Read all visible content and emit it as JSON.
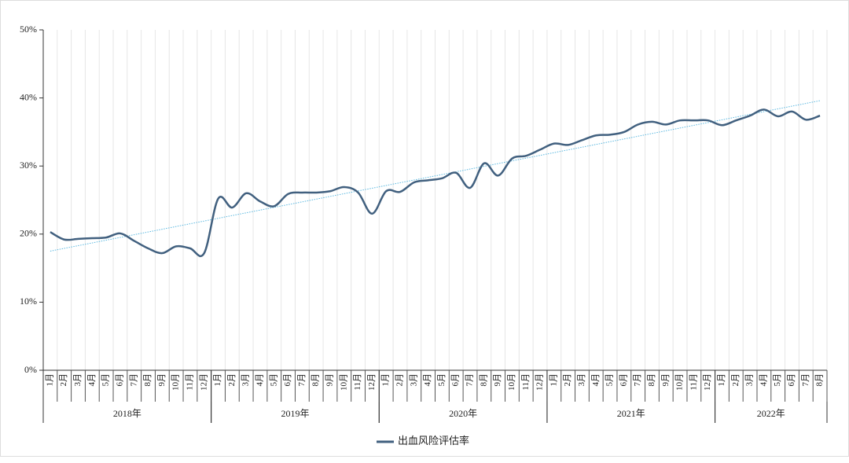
{
  "chart_data": {
    "type": "line",
    "category_groups": [
      {
        "label": "2018年",
        "categories": [
          "1月",
          "2月",
          "3月",
          "4月",
          "5月",
          "6月",
          "7月",
          "8月",
          "9月",
          "10月",
          "11月",
          "12月"
        ]
      },
      {
        "label": "2019年",
        "categories": [
          "1月",
          "2月",
          "3月",
          "4月",
          "5月",
          "6月",
          "7月",
          "8月",
          "9月",
          "10月",
          "11月",
          "12月"
        ]
      },
      {
        "label": "2020年",
        "categories": [
          "1月",
          "2月",
          "3月",
          "4月",
          "5月",
          "6月",
          "7月",
          "8月",
          "9月",
          "10月",
          "11月",
          "12月"
        ]
      },
      {
        "label": "2021年",
        "categories": [
          "1月",
          "2月",
          "3月",
          "4月",
          "5月",
          "6月",
          "7月",
          "8月",
          "9月",
          "10月",
          "11月",
          "12月"
        ]
      },
      {
        "label": "2022年",
        "categories": [
          "1月",
          "2月",
          "3月",
          "4月",
          "5月",
          "6月",
          "7月",
          "8月"
        ]
      }
    ],
    "series": [
      {
        "name": "出血风险评估率",
        "color": "#41607f",
        "values": [
          20.3,
          19.2,
          19.3,
          19.4,
          19.5,
          20.1,
          19.0,
          17.9,
          17.2,
          18.2,
          17.9,
          17.2,
          25.2,
          23.9,
          26.0,
          24.8,
          24.1,
          25.9,
          26.1,
          26.1,
          26.3,
          26.9,
          26.1,
          23.0,
          26.3,
          26.2,
          27.6,
          27.9,
          28.2,
          29.0,
          26.8,
          30.4,
          28.6,
          31.1,
          31.5,
          32.4,
          33.3,
          33.1,
          33.8,
          34.5,
          34.6,
          35.0,
          36.1,
          36.5,
          36.1,
          36.7,
          36.7,
          36.7,
          36.0,
          36.7,
          37.4,
          38.3,
          37.3,
          38.0,
          36.8,
          37.4
        ]
      }
    ],
    "trendline": {
      "values": [
        17.5,
        39.6
      ],
      "color": "#5bb8e0"
    },
    "ylim": [
      0,
      50
    ],
    "yticks": [
      {
        "value": 0,
        "label": "0%"
      },
      {
        "value": 10,
        "label": "10%"
      },
      {
        "value": 20,
        "label": "20%"
      },
      {
        "value": 30,
        "label": "30%"
      },
      {
        "value": 40,
        "label": "40%"
      },
      {
        "value": 50,
        "label": "50%"
      }
    ],
    "grid": true
  }
}
